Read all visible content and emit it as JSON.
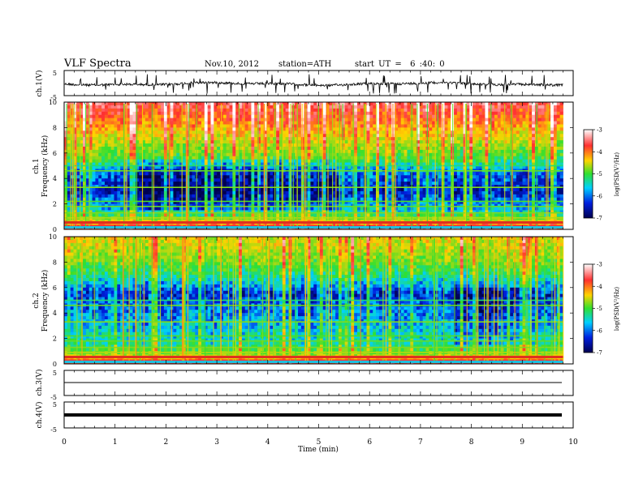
{
  "header": {
    "title": "VLF Spectra",
    "date": "Nov.10, 2012",
    "station": "station=ATH",
    "start_ut": "start UT =  6 :40: 0"
  },
  "colorbar": {
    "label": "log(PSD(V²/Hz)",
    "ticks": [
      -3,
      -4,
      -5,
      -6,
      -7
    ],
    "colors": [
      "#ffffff",
      "#ff3030",
      "#ffd400",
      "#30e030",
      "#00d0ff",
      "#0020e0",
      "#000050"
    ]
  },
  "chart_data": [
    {
      "type": "line",
      "panel": "ch1-waveform",
      "ylabel": "ch.1(V)",
      "ylim": [
        -5,
        5
      ],
      "yticks": [
        5,
        -5
      ],
      "xlim": [
        0,
        10
      ],
      "x_max_data": 9.8,
      "description": "dense noisy waveform around 0 V with spikes"
    },
    {
      "type": "heatmap",
      "panel": "ch1-spectrogram",
      "ylabel_line1": "ch.1",
      "ylabel_line2": "Frequency (kHz)",
      "ylim": [
        0,
        10
      ],
      "yticks": [
        0,
        2,
        4,
        6,
        8,
        10
      ],
      "xlim": [
        0,
        10
      ],
      "zlim": [
        -7,
        -3
      ],
      "profile_log_psd": [
        [
          0,
          -3.5
        ],
        [
          0.5,
          -4.6
        ],
        [
          1.5,
          -6.0
        ],
        [
          3.0,
          -6.6
        ],
        [
          4.5,
          -6.3
        ],
        [
          5.5,
          -5.4
        ],
        [
          7.0,
          -4.8
        ],
        [
          8.5,
          -4.2
        ],
        [
          10,
          -3.7
        ]
      ]
    },
    {
      "type": "heatmap",
      "panel": "ch2-spectrogram",
      "ylabel_line1": "ch.2",
      "ylabel_line2": "Frequency (kHz)",
      "ylim": [
        0,
        10
      ],
      "yticks": [
        0,
        2,
        4,
        6,
        8,
        10
      ],
      "xlim": [
        0,
        10
      ],
      "zlim": [
        -7,
        -3
      ],
      "profile_log_psd": [
        [
          0,
          -3.6
        ],
        [
          0.5,
          -4.8
        ],
        [
          1.5,
          -5.7
        ],
        [
          3.0,
          -6.0
        ],
        [
          4.5,
          -6.3
        ],
        [
          5.5,
          -6.5
        ],
        [
          7.0,
          -5.6
        ],
        [
          8.5,
          -5.0
        ],
        [
          10,
          -4.7
        ]
      ]
    },
    {
      "type": "line",
      "panel": "ch3-waveform",
      "ylabel": "ch.3(V)",
      "ylim": [
        -5,
        5
      ],
      "yticks": [
        5,
        -5
      ],
      "xlim": [
        0,
        10
      ],
      "x_max_data": 9.8,
      "description": "flat trace near 0 V"
    },
    {
      "type": "line",
      "panel": "ch4-waveform",
      "ylabel": "ch.4(V)",
      "ylim": [
        -5,
        5
      ],
      "yticks": [
        5,
        -5
      ],
      "xlim": [
        0,
        10
      ],
      "x_max_data": 9.8,
      "description": "thick flat band near 0 V"
    }
  ],
  "xaxis": {
    "label": "Time (min)",
    "ticks": [
      0,
      1,
      2,
      3,
      4,
      5,
      6,
      7,
      8,
      9,
      10
    ]
  }
}
